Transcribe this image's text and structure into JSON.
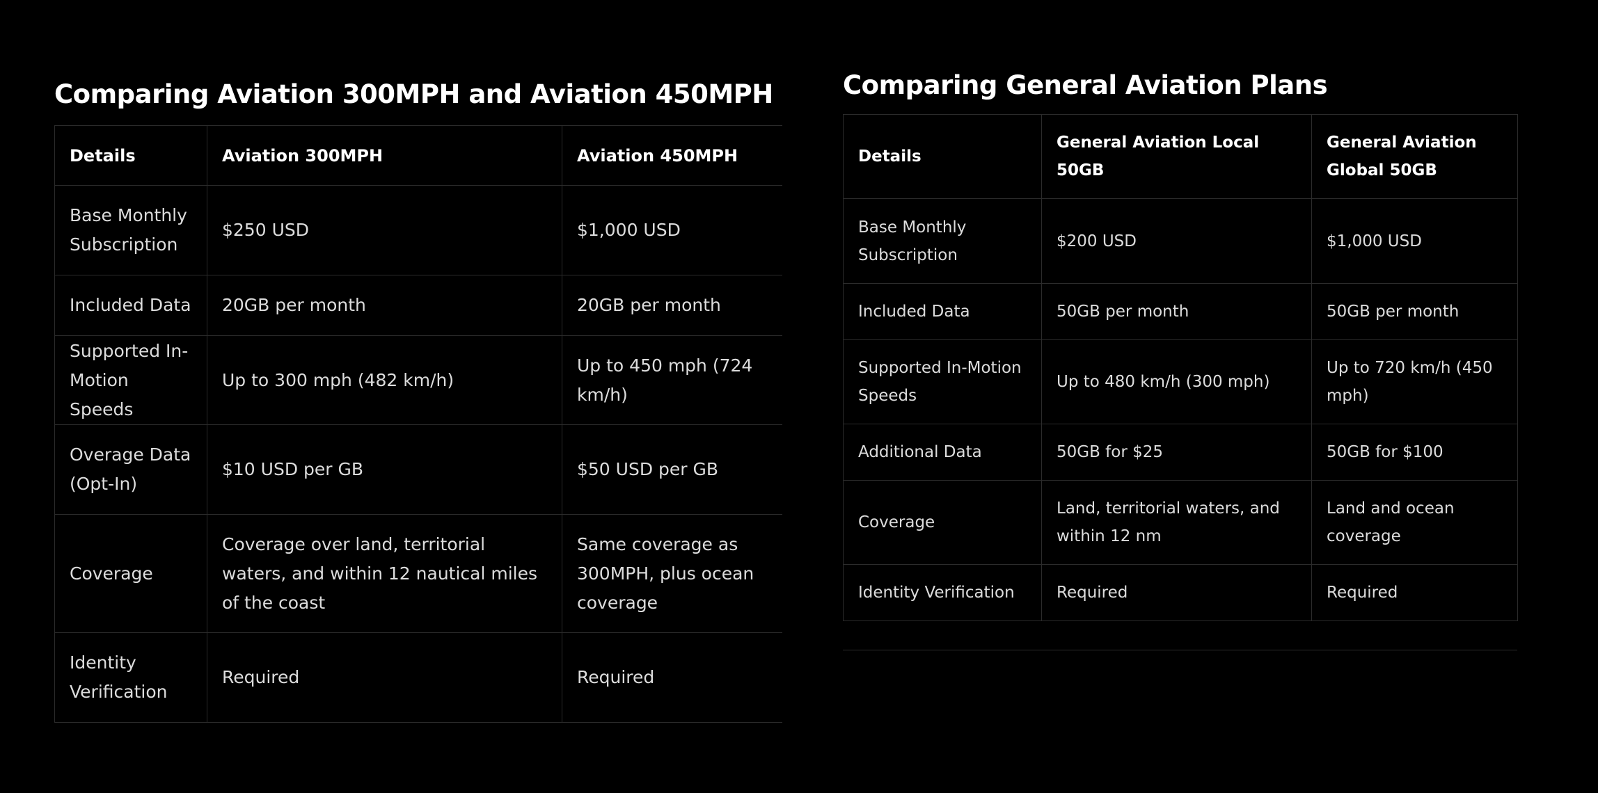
{
  "left": {
    "title": "Comparing Aviation 300MPH and Aviation 450MPH",
    "headers": [
      "Details",
      "Aviation 300MPH",
      "Aviation 450MPH"
    ],
    "rows": [
      [
        "Base Monthly Subscription",
        "$250 USD",
        "$1,000 USD"
      ],
      [
        "Included Data",
        "20GB per month",
        "20GB per month"
      ],
      [
        "Supported In-Motion Speeds",
        "Up to 300 mph (482 km/h)",
        "Up to 450 mph (724 km/h)"
      ],
      [
        "Overage Data (Opt-In)",
        "$10 USD per GB",
        "$50 USD per GB"
      ],
      [
        "Coverage",
        "Coverage over land, territorial waters, and within 12 nautical miles of the coast",
        "Same coverage as 300MPH, plus ocean coverage"
      ],
      [
        "Identity Verification",
        "Required",
        "Required"
      ]
    ]
  },
  "right": {
    "title": "Comparing General Aviation Plans",
    "headers": [
      "Details",
      "General Aviation Local 50GB",
      "General Aviation Global 50GB"
    ],
    "rows": [
      [
        "Base Monthly Subscription",
        "$200 USD",
        "$1,000 USD"
      ],
      [
        "Included Data",
        "50GB per month",
        "50GB per month"
      ],
      [
        "Supported In-Motion Speeds",
        "Up to 480 km/h (300 mph)",
        "Up to 720 km/h (450 mph)"
      ],
      [
        "Additional Data",
        "50GB for $25",
        "50GB for $100"
      ],
      [
        "Coverage",
        "Land, territorial waters, and within 12 nm",
        "Land and ocean coverage"
      ],
      [
        "Identity Verification",
        "Required",
        "Required"
      ]
    ]
  }
}
